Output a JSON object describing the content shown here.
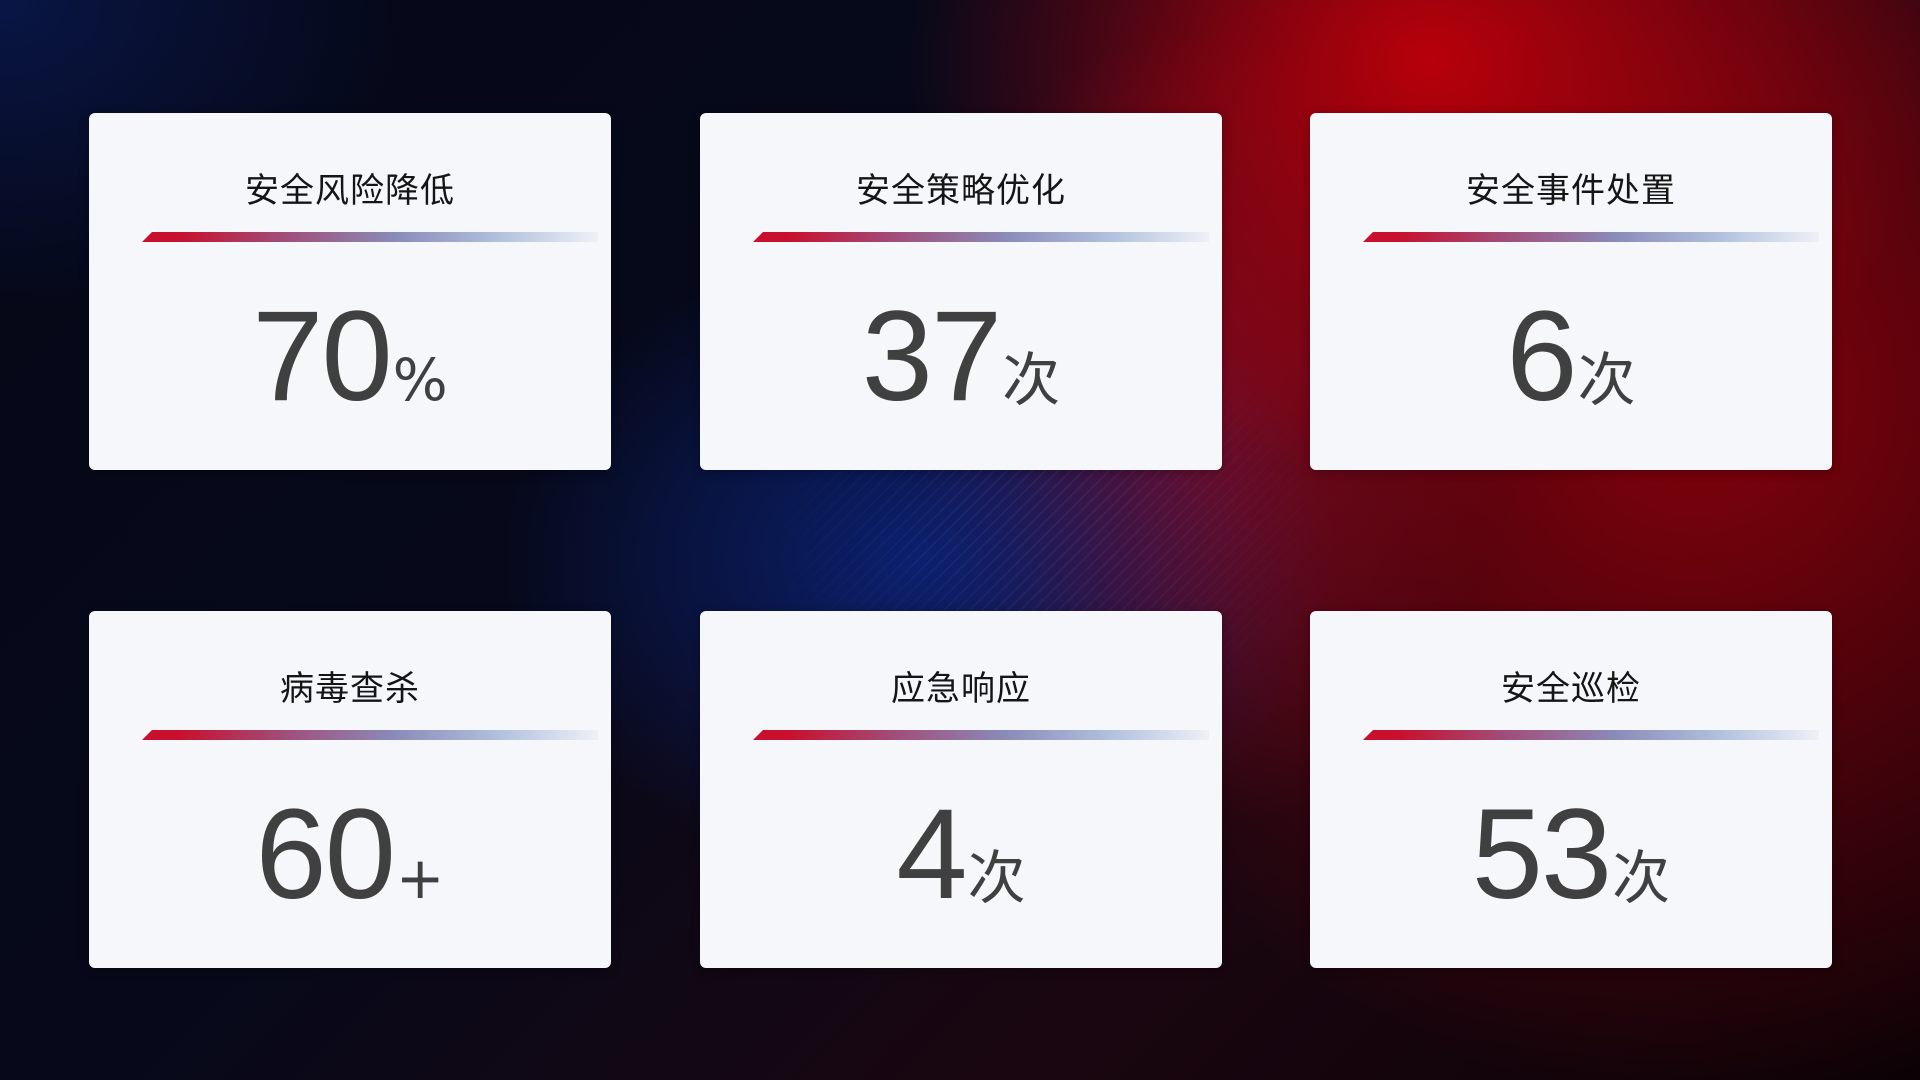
{
  "cards": [
    {
      "title": "安全风险降低",
      "value": "70",
      "unit": "%"
    },
    {
      "title": "安全策略优化",
      "value": "37",
      "unit": "次"
    },
    {
      "title": "安全事件处置",
      "value": "6",
      "unit": "次"
    },
    {
      "title": "病毒查杀",
      "value": "60",
      "unit": "+"
    },
    {
      "title": "应急响应",
      "value": "4",
      "unit": "次"
    },
    {
      "title": "安全巡检",
      "value": "53",
      "unit": "次"
    }
  ],
  "colors": {
    "accent_red": "#c8102e",
    "accent_blue": "#8a8ab8",
    "value_text": "#404040",
    "card_bg": "#f6f7fb"
  }
}
